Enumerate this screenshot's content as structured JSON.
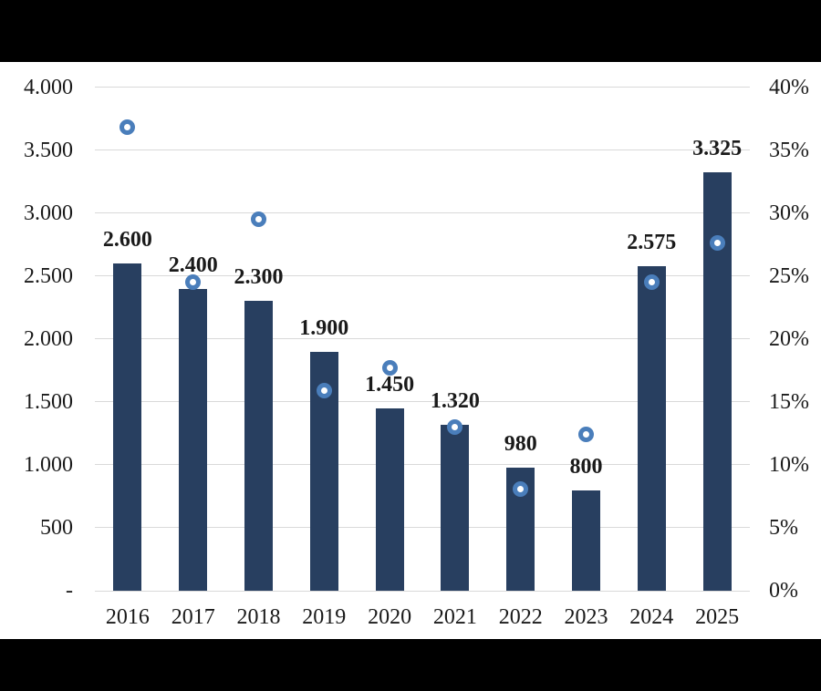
{
  "chart_data": {
    "type": "combo",
    "title": "",
    "legend": "none",
    "grid": "horizontal",
    "categories": [
      "2016",
      "2017",
      "2018",
      "2019",
      "2020",
      "2021",
      "2022",
      "2023",
      "2024",
      "2025"
    ],
    "series": [
      {
        "name": "bars-left-axis",
        "type": "bar",
        "axis": "left",
        "values": [
          2600,
          2400,
          2300,
          1900,
          1450,
          1320,
          980,
          800,
          2575,
          3325
        ],
        "data_labels": [
          "2.600",
          "2.400",
          "2.300",
          "1.900",
          "1.450",
          "1.320",
          "980",
          "800",
          "2.575",
          "3.325"
        ]
      },
      {
        "name": "markers-right-axis",
        "type": "scatter",
        "axis": "right",
        "unit": "%",
        "values": [
          36.8,
          24.5,
          29.5,
          15.9,
          17.7,
          13.0,
          8.1,
          12.4,
          24.5,
          27.6
        ]
      }
    ],
    "left_axis": {
      "min": 0,
      "max": 4000,
      "tick_labels": [
        "4.000",
        "3.500",
        "3.000",
        "2.500",
        "2.000",
        "1.500",
        "1.000",
        "500",
        "-"
      ]
    },
    "right_axis": {
      "min": 0,
      "max": 40,
      "tick_labels": [
        "40%",
        "35%",
        "30%",
        "25%",
        "20%",
        "15%",
        "10%",
        "5%",
        "0%"
      ]
    },
    "x_axis": {
      "tick_labels": [
        "2016",
        "2017",
        "2018",
        "2019",
        "2020",
        "2021",
        "2022",
        "2023",
        "2024",
        "2025"
      ]
    }
  },
  "colors": {
    "bar": "#283f60",
    "marker_ring": "#4a7ebb",
    "marker_fill": "#ffffff",
    "gridline": "#d9d9d9",
    "panel_bg": "#ffffff",
    "frame_bg": "#000000",
    "text": "#1a1a1a"
  }
}
